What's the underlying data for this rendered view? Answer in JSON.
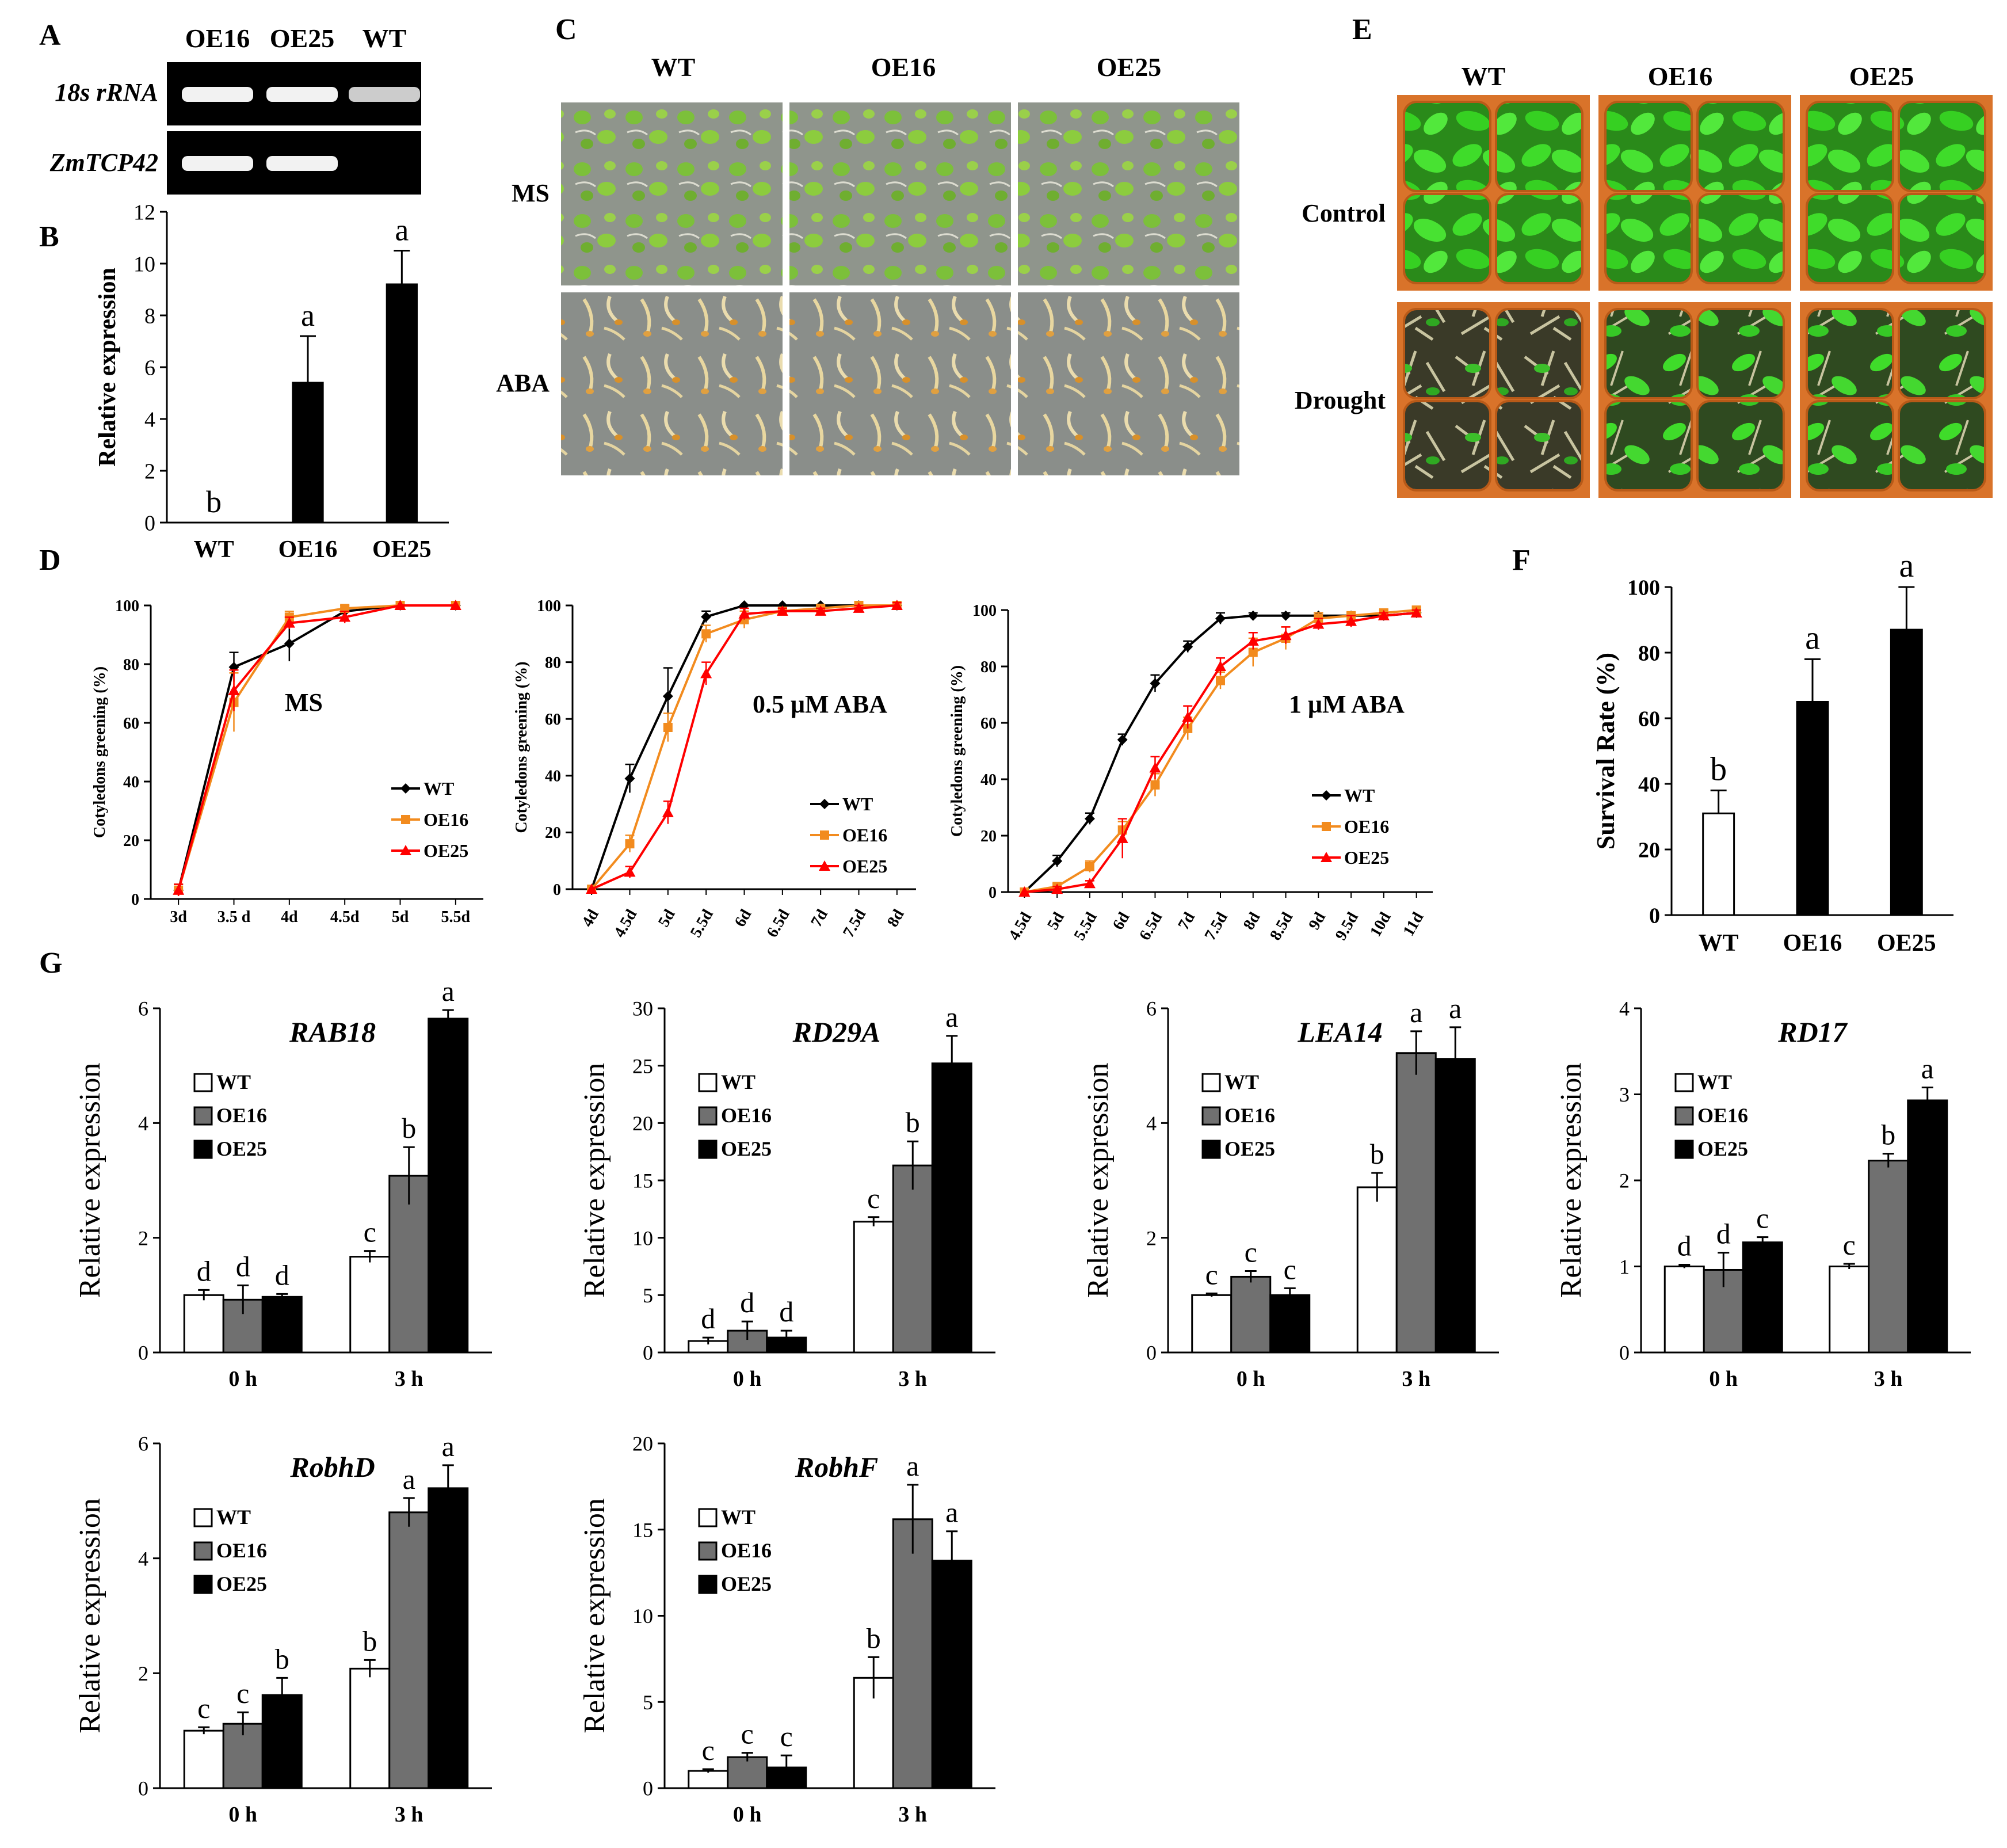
{
  "panel_letters": {
    "A": "A",
    "B": "B",
    "C": "C",
    "D": "D",
    "E": "E",
    "F": "F",
    "G": "G"
  },
  "colors": {
    "WT_line": "#000000",
    "OE16_line": "#f28b1e",
    "OE25_line": "#ff0000",
    "bar_WT": "#ffffff",
    "bar_OE16": "#707070",
    "bar_OE25": "#000000",
    "gel_bg": "#000000",
    "plant_green": "#3fdc2a",
    "pot_orange": "#d9732a"
  },
  "panelA": {
    "lanes": [
      "OE16",
      "OE25",
      "WT"
    ],
    "rows": [
      {
        "label": "18s rRNA",
        "bands": [
          true,
          true,
          true
        ]
      },
      {
        "label": "ZmTCP42",
        "bands": [
          true,
          true,
          false
        ]
      }
    ]
  },
  "panelC": {
    "columns": [
      "WT",
      "OE16",
      "OE25"
    ],
    "rows": [
      "MS",
      "ABA"
    ]
  },
  "panelE": {
    "columns": [
      "WT",
      "OE16",
      "OE25"
    ],
    "rows": [
      "Control",
      "Drought"
    ]
  },
  "chart_data": [
    {
      "id": "B",
      "type": "bar",
      "categories": [
        "WT",
        "OE16",
        "OE25"
      ],
      "values": [
        0,
        5.4,
        9.2
      ],
      "errors": [
        0,
        1.8,
        1.3
      ],
      "letters": [
        "b",
        "a",
        "a"
      ],
      "ylabel": "Relative expression",
      "ylim": [
        0,
        12
      ],
      "yticks": [
        0,
        2,
        4,
        6,
        8,
        10,
        12
      ]
    },
    {
      "id": "D1",
      "type": "line",
      "title": "MS",
      "ylabel": "Cotyledons greening (%)",
      "x": [
        "3d",
        "3.5 d",
        "4d",
        "4.5d",
        "5d",
        "5.5d"
      ],
      "ylim": [
        0,
        100
      ],
      "yticks": [
        0,
        20,
        40,
        60,
        80,
        100
      ],
      "legend": "right",
      "series": [
        {
          "name": "WT",
          "values": [
            3,
            79,
            87,
            98,
            100,
            100
          ],
          "errors": [
            2,
            5,
            6,
            1,
            0,
            0
          ]
        },
        {
          "name": "OE16",
          "values": [
            3,
            67,
            96,
            99,
            100,
            100
          ],
          "errors": [
            2,
            10,
            2,
            1,
            0,
            0
          ]
        },
        {
          "name": "OE25",
          "values": [
            3,
            71,
            94,
            96,
            100,
            100
          ],
          "errors": [
            2,
            7,
            2,
            2,
            0,
            0
          ]
        }
      ]
    },
    {
      "id": "D2",
      "type": "line",
      "title": "0.5 μM ABA",
      "ylabel": "Cotyledons greening (%)",
      "x": [
        "4d",
        "4.5d",
        "5d",
        "5.5d",
        "6d",
        "6.5d",
        "7d",
        "7.5d",
        "8d"
      ],
      "ylim": [
        0,
        100
      ],
      "yticks": [
        0,
        20,
        40,
        60,
        80,
        100
      ],
      "legend": "right",
      "series": [
        {
          "name": "WT",
          "values": [
            0,
            39,
            68,
            96,
            100,
            100,
            100,
            100,
            100
          ],
          "errors": [
            0,
            5,
            10,
            2,
            0,
            0,
            0,
            0,
            0
          ]
        },
        {
          "name": "OE16",
          "values": [
            0,
            16,
            57,
            90,
            95,
            98,
            99,
            100,
            100
          ],
          "errors": [
            0,
            3,
            5,
            3,
            3,
            1,
            1,
            1,
            1
          ]
        },
        {
          "name": "OE25",
          "values": [
            0,
            6,
            27,
            76,
            97,
            98,
            98,
            99,
            100
          ],
          "errors": [
            0,
            2,
            4,
            4,
            2,
            1,
            1,
            1,
            1
          ]
        }
      ]
    },
    {
      "id": "D3",
      "type": "line",
      "title": "1 μM ABA",
      "ylabel": "Cotyledons greening (%)",
      "x": [
        "4.5d",
        "5d",
        "5.5d",
        "6d",
        "6.5d",
        "7d",
        "7.5d",
        "8d",
        "8.5d",
        "9d",
        "9.5d",
        "10d",
        "11d"
      ],
      "ylim": [
        0,
        100
      ],
      "yticks": [
        0,
        20,
        40,
        60,
        80,
        100
      ],
      "legend": "right",
      "series": [
        {
          "name": "WT",
          "values": [
            0,
            11,
            26,
            54,
            74,
            87,
            97,
            98,
            98,
            98,
            98,
            98,
            99
          ],
          "errors": [
            0,
            2,
            2,
            2,
            3,
            2,
            2,
            1,
            1,
            1,
            1,
            1,
            1
          ]
        },
        {
          "name": "OE16",
          "values": [
            0,
            2,
            9,
            22,
            38,
            58,
            75,
            85,
            90,
            97,
            98,
            99,
            100
          ],
          "errors": [
            0,
            1,
            2,
            3,
            4,
            4,
            3,
            5,
            4,
            2,
            1,
            1,
            1
          ]
        },
        {
          "name": "OE25",
          "values": [
            0,
            1,
            3,
            19,
            44,
            62,
            80,
            89,
            91,
            95,
            96,
            98,
            99
          ],
          "errors": [
            0,
            1,
            1,
            7,
            4,
            4,
            3,
            3,
            3,
            2,
            2,
            1,
            1
          ]
        }
      ]
    },
    {
      "id": "F",
      "type": "bar",
      "categories": [
        "WT",
        "OE16",
        "OE25"
      ],
      "values": [
        31,
        65,
        87
      ],
      "errors": [
        7,
        13,
        13
      ],
      "letters": [
        "b",
        "a",
        "a"
      ],
      "ylabel": "Survival Rate (%)",
      "ylim": [
        0,
        100
      ],
      "yticks": [
        0,
        20,
        40,
        60,
        80,
        100
      ]
    },
    {
      "id": "RAB18",
      "type": "bar",
      "title": "RAB18",
      "ylabel": "Relative expression",
      "categories": [
        "0 h",
        "3 h"
      ],
      "ylim": [
        0,
        6
      ],
      "yticks": [
        0,
        2,
        4,
        6
      ],
      "series": [
        {
          "name": "WT",
          "values": [
            1.0,
            1.67
          ],
          "errors": [
            0.09,
            0.1
          ],
          "letters": [
            "d",
            "c"
          ]
        },
        {
          "name": "OE16",
          "values": [
            0.92,
            3.08
          ],
          "errors": [
            0.25,
            0.5
          ],
          "letters": [
            "d",
            "b"
          ]
        },
        {
          "name": "OE25",
          "values": [
            0.97,
            5.82
          ],
          "errors": [
            0.05,
            0.15
          ],
          "letters": [
            "d",
            "a"
          ]
        }
      ]
    },
    {
      "id": "RD29A",
      "type": "bar",
      "title": "RD29A",
      "ylabel": "Relative expression",
      "categories": [
        "0 h",
        "3 h"
      ],
      "ylim": [
        0,
        30
      ],
      "yticks": [
        0,
        5,
        10,
        15,
        20,
        25,
        30
      ],
      "series": [
        {
          "name": "WT",
          "values": [
            1.0,
            11.4
          ],
          "errors": [
            0.3,
            0.4
          ],
          "letters": [
            "d",
            "c"
          ]
        },
        {
          "name": "OE16",
          "values": [
            1.9,
            16.3
          ],
          "errors": [
            0.8,
            2.1
          ],
          "letters": [
            "d",
            "b"
          ]
        },
        {
          "name": "OE25",
          "values": [
            1.3,
            25.2
          ],
          "errors": [
            0.6,
            2.4
          ],
          "letters": [
            "d",
            "a"
          ]
        }
      ]
    },
    {
      "id": "LEA14",
      "type": "bar",
      "title": "LEA14",
      "ylabel": "Relative expression",
      "categories": [
        "0 h",
        "3 h"
      ],
      "ylim": [
        0,
        6
      ],
      "yticks": [
        0,
        2,
        4,
        6
      ],
      "series": [
        {
          "name": "WT",
          "values": [
            1.0,
            2.88
          ],
          "errors": [
            0.03,
            0.25
          ],
          "letters": [
            "c",
            "b"
          ]
        },
        {
          "name": "OE16",
          "values": [
            1.32,
            5.22
          ],
          "errors": [
            0.1,
            0.38
          ],
          "letters": [
            "c",
            "a"
          ]
        },
        {
          "name": "OE25",
          "values": [
            1.0,
            5.12
          ],
          "errors": [
            0.12,
            0.55
          ],
          "letters": [
            "c",
            "a"
          ]
        }
      ]
    },
    {
      "id": "RD17",
      "type": "bar",
      "title": "RD17",
      "ylabel": "Relative expression",
      "categories": [
        "0 h",
        "3 h"
      ],
      "ylim": [
        0,
        4
      ],
      "yticks": [
        0,
        1,
        2,
        3,
        4
      ],
      "series": [
        {
          "name": "WT",
          "values": [
            1.0,
            1.0
          ],
          "errors": [
            0.02,
            0.03
          ],
          "letters": [
            "d",
            "c"
          ]
        },
        {
          "name": "OE16",
          "values": [
            0.96,
            2.23
          ],
          "errors": [
            0.2,
            0.08
          ],
          "letters": [
            "d",
            "b"
          ]
        },
        {
          "name": "OE25",
          "values": [
            1.28,
            2.93
          ],
          "errors": [
            0.06,
            0.15
          ],
          "letters": [
            "c",
            "a"
          ]
        }
      ]
    },
    {
      "id": "RobhD",
      "type": "bar",
      "title": "RobhD",
      "ylabel": "Relative expression",
      "categories": [
        "0 h",
        "3 h"
      ],
      "ylim": [
        0,
        6
      ],
      "yticks": [
        0,
        2,
        4,
        6
      ],
      "series": [
        {
          "name": "WT",
          "values": [
            1.0,
            2.08
          ],
          "errors": [
            0.06,
            0.15
          ],
          "letters": [
            "c",
            "b"
          ]
        },
        {
          "name": "OE16",
          "values": [
            1.12,
            4.8
          ],
          "errors": [
            0.2,
            0.25
          ],
          "letters": [
            "c",
            "a"
          ]
        },
        {
          "name": "OE25",
          "values": [
            1.62,
            5.22
          ],
          "errors": [
            0.3,
            0.4
          ],
          "letters": [
            "b",
            "a"
          ]
        }
      ]
    },
    {
      "id": "RobhF",
      "type": "bar",
      "title": "RobhF",
      "ylabel": "Relative expression",
      "categories": [
        "0 h",
        "3 h"
      ],
      "ylim": [
        0,
        20
      ],
      "yticks": [
        0,
        5,
        10,
        15,
        20
      ],
      "series": [
        {
          "name": "WT",
          "values": [
            1.0,
            6.4
          ],
          "errors": [
            0.1,
            1.2
          ],
          "letters": [
            "c",
            "b"
          ]
        },
        {
          "name": "OE16",
          "values": [
            1.8,
            15.6
          ],
          "errors": [
            0.25,
            2.0
          ],
          "letters": [
            "c",
            "a"
          ]
        },
        {
          "name": "OE25",
          "values": [
            1.2,
            13.2
          ],
          "errors": [
            0.7,
            1.7
          ],
          "letters": [
            "c",
            "a"
          ]
        }
      ]
    }
  ]
}
